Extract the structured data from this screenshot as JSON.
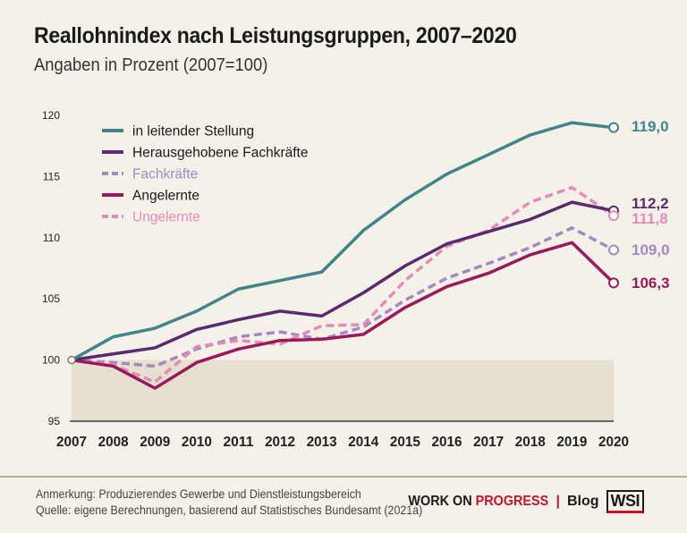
{
  "title": "Reallohnindex nach Leistungsgruppen, 2007–2020",
  "subtitle": "Angaben in Prozent (2007=100)",
  "notes": {
    "line1": "Anmerkung: Produzierendes Gewerbe und Dienstleistungsbereich",
    "line2": "Quelle: eigene Berechnungen, basierend auf Statistisches Bundesamt (2021a)"
  },
  "brand": {
    "work_on": "WORK ON ",
    "progress": "PROGRESS",
    "separator": "|",
    "blog": "Blog",
    "wsi": "WSI"
  },
  "chart_data": {
    "type": "line",
    "x": [
      2007,
      2008,
      2009,
      2010,
      2011,
      2012,
      2013,
      2014,
      2015,
      2016,
      2017,
      2018,
      2019,
      2020
    ],
    "ylim": [
      95,
      120
    ],
    "yticks": [
      95,
      100,
      105,
      110,
      115,
      120
    ],
    "baseline_shading_below": 100,
    "grid": false,
    "legend_placement": "top-left",
    "series": [
      {
        "name": "in leitender Stellung",
        "color": "#3f858a",
        "dashed": false,
        "values": [
          100,
          101.9,
          102.6,
          104.0,
          105.8,
          106.5,
          107.2,
          110.6,
          113.1,
          115.2,
          116.8,
          118.4,
          119.4,
          119.0
        ],
        "end_label": "119,0"
      },
      {
        "name": "Herausgehobene Fachkräfte",
        "color": "#5a2a6e",
        "dashed": false,
        "values": [
          100,
          100.5,
          101.0,
          102.5,
          103.3,
          104.0,
          103.6,
          105.5,
          107.7,
          109.5,
          110.5,
          111.5,
          112.9,
          112.2
        ],
        "end_label": "112,2"
      },
      {
        "name": "Fachkräfte",
        "color": "#a389c2",
        "dashed": true,
        "values": [
          100,
          99.8,
          99.5,
          100.9,
          101.9,
          102.3,
          101.7,
          102.7,
          104.9,
          106.7,
          107.9,
          109.2,
          110.8,
          109.0
        ],
        "end_label": "109,0"
      },
      {
        "name": "Angelernte",
        "color": "#99195a",
        "dashed": false,
        "values": [
          100,
          99.5,
          97.7,
          99.8,
          100.9,
          101.6,
          101.7,
          102.1,
          104.3,
          106.0,
          107.1,
          108.6,
          109.6,
          106.3
        ],
        "end_label": "106,3"
      },
      {
        "name": "Ungelernte",
        "color": "#e68bb8",
        "dashed": true,
        "values": [
          100,
          99.6,
          98.2,
          101.1,
          101.6,
          101.3,
          102.8,
          102.9,
          106.5,
          109.3,
          110.6,
          112.9,
          114.1,
          111.8
        ],
        "end_label": "111,8"
      }
    ]
  }
}
